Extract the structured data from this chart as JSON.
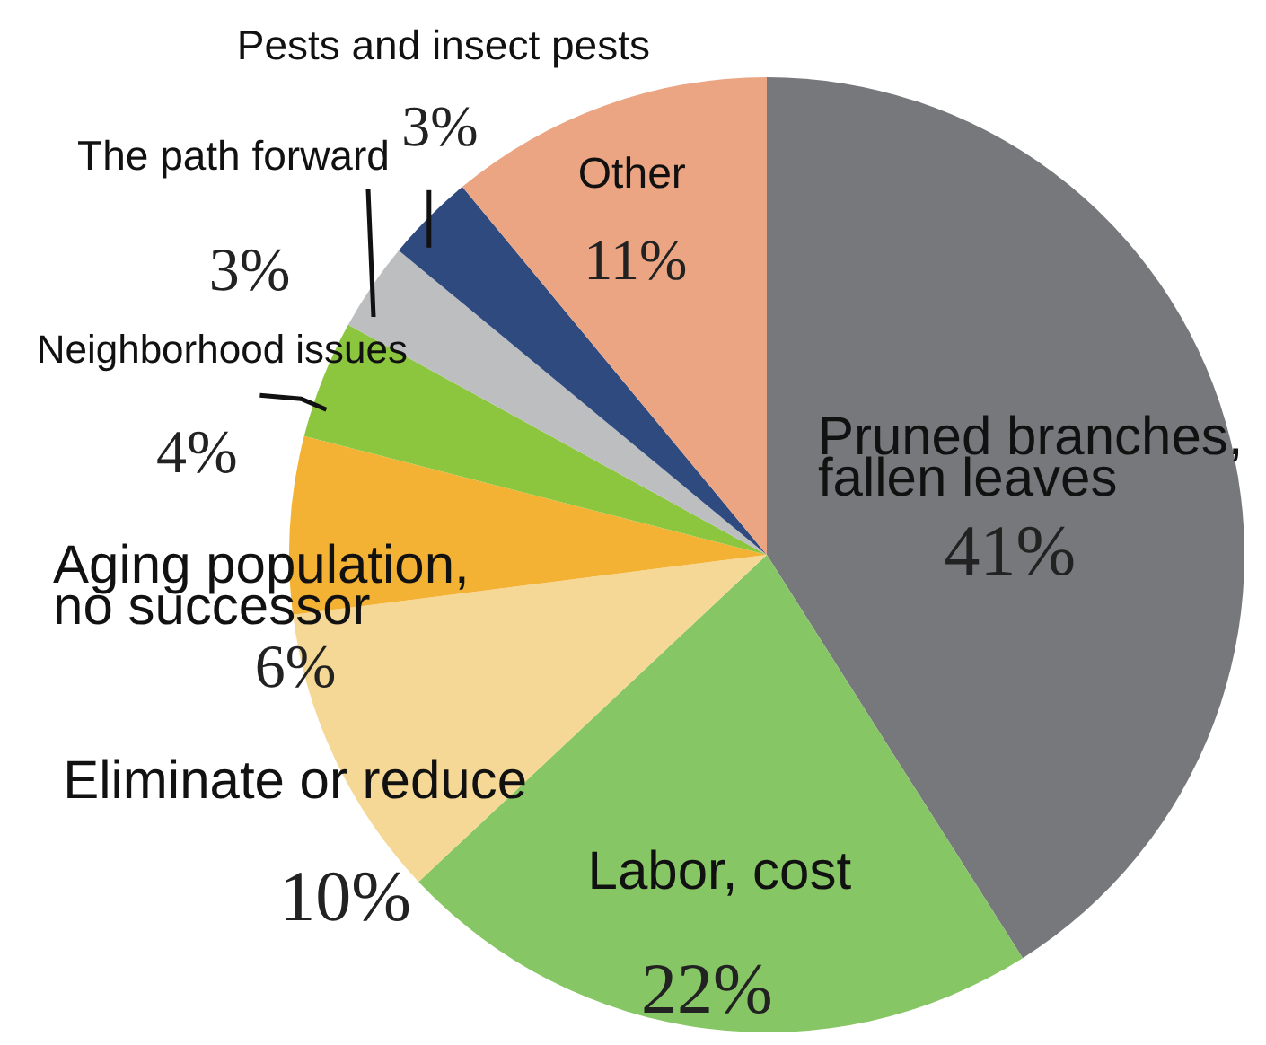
{
  "chart_data": {
    "type": "pie",
    "categories": [
      "Pruned branches, fallen leaves",
      "Labor, cost",
      "Eliminate or reduce",
      "Aging population, no successor",
      "Neighborhood issues",
      "The path forward",
      "Pests and insect pests",
      "Other"
    ],
    "values": [
      41,
      22,
      10,
      6,
      4,
      3,
      3,
      11
    ],
    "colors": [
      "#77787c",
      "#86c664",
      "#f5d896",
      "#f3b234",
      "#8cc63e",
      "#bdbec0",
      "#2e4a7f",
      "#eba583"
    ],
    "value_labels": [
      "41%",
      "22%",
      "10%",
      "6%",
      "4%",
      "3%",
      "3%",
      "11%"
    ]
  }
}
